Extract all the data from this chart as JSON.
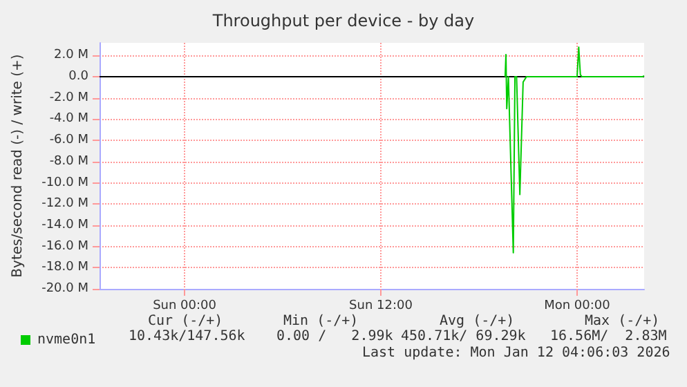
{
  "chart_data": {
    "type": "line",
    "title": "Throughput per device - by day",
    "ylabel": "Bytes/second read (-) / write (+)",
    "xlim": [
      "2026-01-10T18:48",
      "2026-01-12T04:06"
    ],
    "ylim": [
      -20,
      3.2
    ],
    "xticks": [
      {
        "value": "2026-01-11T00:00",
        "label": "Sun 00:00"
      },
      {
        "value": "2026-01-11T12:00",
        "label": "Sun 12:00"
      },
      {
        "value": "2026-01-12T00:00",
        "label": "Mon 00:00"
      }
    ],
    "yticks": [
      {
        "value": 2,
        "label": "2.0 M"
      },
      {
        "value": 0,
        "label": "0.0"
      },
      {
        "value": -2,
        "label": "-2.0 M"
      },
      {
        "value": -4,
        "label": "-4.0 M"
      },
      {
        "value": -6,
        "label": "-6.0 M"
      },
      {
        "value": -8,
        "label": "-8.0 M"
      },
      {
        "value": -10,
        "label": "-10.0 M"
      },
      {
        "value": -12,
        "label": "-12.0 M"
      },
      {
        "value": -14,
        "label": "-14.0 M"
      },
      {
        "value": -16,
        "label": "-16.0 M"
      },
      {
        "value": -18,
        "label": "-18.0 M"
      },
      {
        "value": -20,
        "label": "-20.0 M"
      }
    ],
    "grid": true,
    "legend": "bottom left",
    "marker": "none",
    "line_style": "solid",
    "ref_lines": [
      {
        "axis": "y",
        "value": 0,
        "color": "#000000"
      }
    ],
    "series": [
      {
        "name": "nvme0n1",
        "color": "#00cc00",
        "x": [
          "2026-01-11T19:36",
          "2026-01-11T19:39",
          "2026-01-11T19:42",
          "2026-01-11T19:48",
          "2026-01-11T20:06",
          "2026-01-11T20:12",
          "2026-01-11T20:18",
          "2026-01-11T20:30",
          "2026-01-11T20:42",
          "2026-01-11T20:54",
          "2026-01-12T00:00",
          "2026-01-12T00:06",
          "2026-01-12T00:12",
          "2026-01-12T00:18",
          "2026-01-12T04:00",
          "2026-01-12T04:06"
        ],
        "values": [
          0,
          2.1,
          -3.0,
          0,
          -16.6,
          0,
          0,
          -11.1,
          -0.5,
          0,
          0,
          2.8,
          0.2,
          0,
          0,
          0.1
        ]
      }
    ],
    "annotations": [
      "Cur (-/+)",
      "Min (-/+)",
      "Avg (-/+)",
      "Max (-/+)",
      "10.43k/147.56k",
      "0.00 /   2.99k",
      "450.71k/ 69.29k",
      "16.56M/  2.83M",
      "Last update: Mon Jan 12 04:06:03 2026"
    ]
  }
}
